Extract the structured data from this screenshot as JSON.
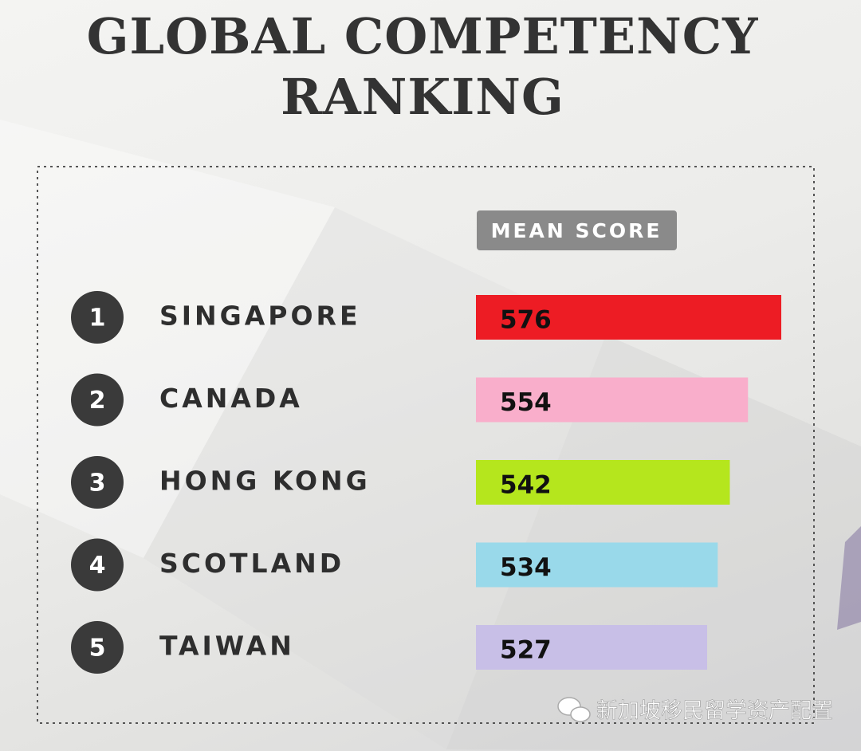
{
  "chart_data": {
    "type": "bar",
    "title": "GLOBAL COMPETENCY RANKING",
    "value_header": "MEAN SCORE",
    "ranks": [
      "1",
      "2",
      "3",
      "4",
      "5"
    ],
    "categories": [
      "SINGAPORE",
      "CANADA",
      "HONG KONG",
      "SCOTLAND",
      "TAIWAN"
    ],
    "values": [
      576,
      554,
      542,
      534,
      527
    ],
    "colors": [
      "#ed1c24",
      "#f9aecb",
      "#b5e61d",
      "#99d9ea",
      "#c8bfe7"
    ]
  },
  "watermark": "新加坡移民留学资产配置"
}
